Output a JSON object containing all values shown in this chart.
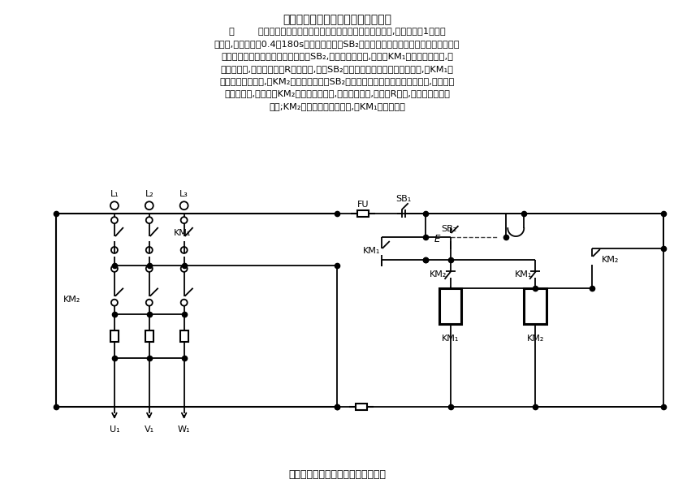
{
  "title_top": "延时复位按钮控制的电动机控制电路",
  "title_bottom": "延时复位按钮控制的电动机控制电路",
  "para1": "图        所示为带延时复位功能按钮控制的电动机降压启动电路,比原电路省1只时间",
  "para2": "继电器,其延时范围0.4～180s。延时复位按钮SB₂为在原有一个常开触点基础上增加一个延",
  "para3": "时复位闭合的常闭触点的按钮。按下SB₂,其常开触点闭合,接触器KM₁得电吸合并自锁,其",
  "para4": "主触点闭合,电动机串电阻R降压启动,同时SB₂的延时复位闭合的常闭触点断开,而KM₁的",
  "para5": "常开辅助触点闭合,为KM₂得电作准备。待SB₂已断开的延时复位闭合的常闭触点,延时一定",
  "para6": "时间后闭合,使接触器KM₂得电吸合并自锁,其主触点闭合,将电阻R短接,电动机进入全压",
  "para7": "运行;KM₂的常闭辅助触点断开,使KM₁失电释放。",
  "bg_color": "#ffffff",
  "line_color": "#000000",
  "text_color": "#000000",
  "figsize": [
    8.3,
    6.01
  ]
}
